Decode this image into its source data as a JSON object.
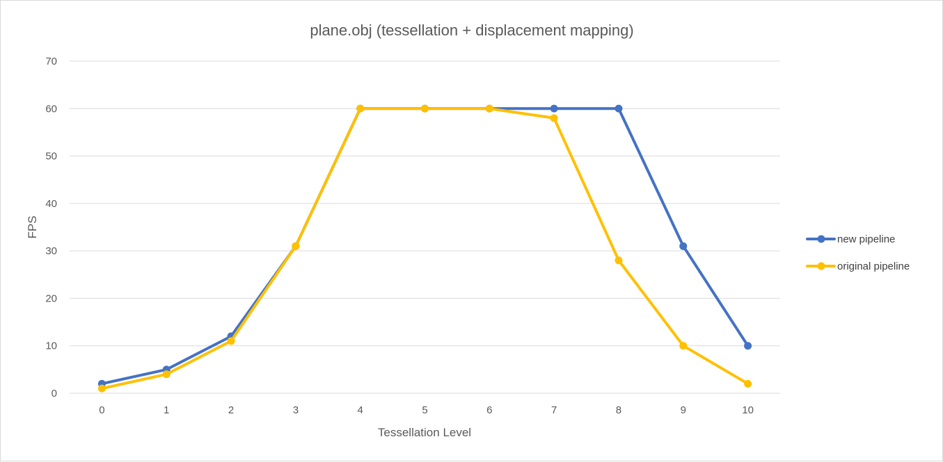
{
  "chart_data": {
    "type": "line",
    "title": "plane.obj (tessellation + displacement mapping)",
    "xlabel": "Tessellation Level",
    "ylabel": "FPS",
    "categories": [
      "0",
      "1",
      "2",
      "3",
      "4",
      "5",
      "6",
      "7",
      "8",
      "9",
      "10"
    ],
    "ylim": [
      0,
      70
    ],
    "yticks": [
      "0",
      "10",
      "20",
      "30",
      "40",
      "50",
      "60",
      "70"
    ],
    "grid": true,
    "legend_position": "right",
    "series": [
      {
        "name": "new pipeline",
        "color": "#4472C4",
        "values": [
          2,
          5,
          12,
          31,
          60,
          60,
          60,
          60,
          60,
          31,
          10
        ]
      },
      {
        "name": "original pipeline",
        "color": "#FFC000",
        "values": [
          1,
          4,
          11,
          31,
          60,
          60,
          60,
          58,
          28,
          10,
          2
        ]
      }
    ]
  }
}
